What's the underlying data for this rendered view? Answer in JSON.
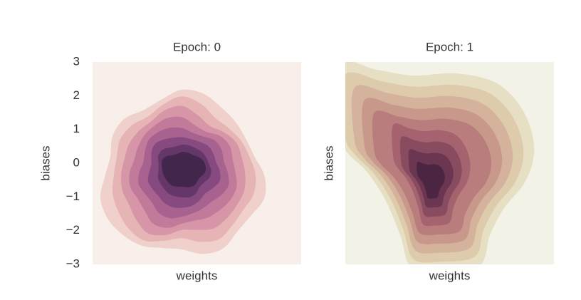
{
  "chart_data": [
    {
      "type": "kde",
      "title": "Epoch: 0",
      "xlabel": "weights",
      "ylabel": "biases",
      "ylim": [
        -3,
        3
      ],
      "yticks": [
        {
          "value": 3,
          "label": "3"
        },
        {
          "value": 2,
          "label": "2"
        },
        {
          "value": 1,
          "label": "1"
        },
        {
          "value": 0,
          "label": "0"
        },
        {
          "value": -1,
          "label": "−1"
        },
        {
          "value": -2,
          "label": "−2"
        },
        {
          "value": -3,
          "label": "−3"
        }
      ],
      "background": "#f8efeb",
      "level_colors": [
        "#f0d0cb",
        "#e6b4b5",
        "#d696a7",
        "#c27a9b",
        "#a7628f",
        "#864a80",
        "#653768",
        "#43264c"
      ]
    },
    {
      "type": "kde",
      "title": "Epoch: 1",
      "xlabel": "weights",
      "ylabel": "biases",
      "background": "#f3f2e6",
      "level_colors": [
        "#e6dfc4",
        "#ddcbac",
        "#d4b29b",
        "#c8988b",
        "#b97d7d",
        "#a4636f",
        "#884b60",
        "#6b3651",
        "#4b2541"
      ]
    }
  ]
}
